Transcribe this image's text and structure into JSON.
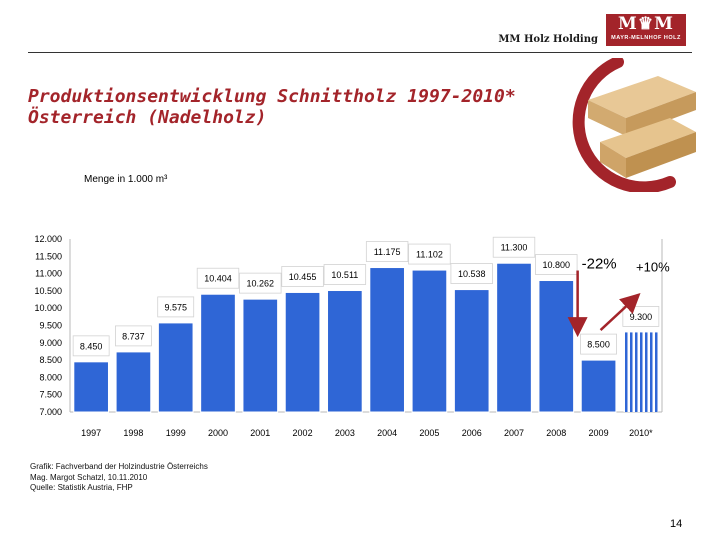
{
  "header": {
    "company": "MM Holz Holding",
    "logo_mark": "M♛M",
    "logo_text": "MAYR-MELNHOF HOLZ"
  },
  "title_lines": [
    "Produktionsentwicklung Schnittholz 1997-2010*",
    "Österreich (Nadelholz)"
  ],
  "unit_label": "Menge in 1.000 m³",
  "footer_lines": [
    "Grafik: Fachverband der Holzindustrie Österreichs",
    "Mag. Margot Schatzl, 10.11.2010",
    "Quelle: Statistik Austria, FHP"
  ],
  "page_number": "14",
  "colors": {
    "accent": "#a3242a",
    "bar": "#2f66d6",
    "forecast_stripe": "#2f66d6"
  },
  "chart_data": {
    "type": "bar",
    "categories": [
      "1997",
      "1998",
      "1999",
      "2000",
      "2001",
      "2002",
      "2003",
      "2004",
      "2005",
      "2006",
      "2007",
      "2008",
      "2009",
      "2010*"
    ],
    "values": [
      8450,
      8737,
      9575,
      10404,
      10262,
      10455,
      10511,
      11175,
      11102,
      10538,
      11300,
      10800,
      8500,
      9300
    ],
    "value_labels": [
      "8.450",
      "8.737",
      "9.575",
      "10.404",
      "10.262",
      "10.455",
      "10.511",
      "11.175",
      "11.102",
      "10.538",
      "11.300",
      "10.800",
      "8.500",
      "9.300"
    ],
    "forecast_index": 13,
    "ylim": [
      7000,
      12000
    ],
    "yticks": [
      7000,
      7500,
      8000,
      8500,
      9000,
      9500,
      10000,
      10500,
      11000,
      11500,
      12000
    ],
    "ytick_labels": [
      "7.000",
      "7.500",
      "8.000",
      "8.500",
      "9.000",
      "9.500",
      "10.000",
      "10.500",
      "11.000",
      "11.500",
      "12.000"
    ],
    "annotations": [
      {
        "text": "-22%",
        "from_index": 11,
        "to_index": 12
      },
      {
        "text": "+10%",
        "from_index": 12,
        "to_index": 13
      }
    ],
    "grid": false
  }
}
